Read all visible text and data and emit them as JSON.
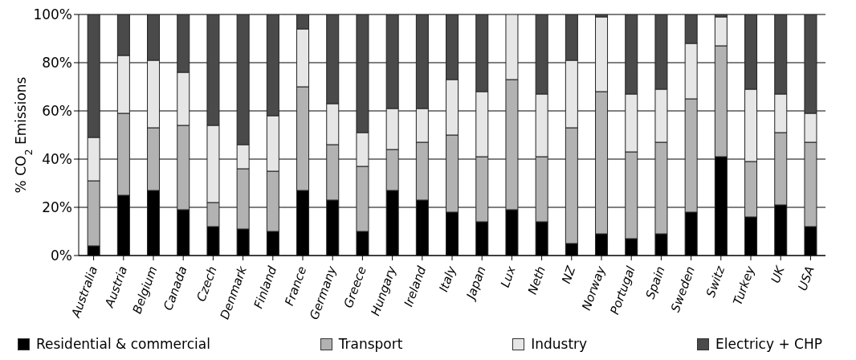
{
  "chart_data": {
    "type": "bar",
    "stacked": true,
    "ylabel": "% CO$_{2}$ Emissions",
    "categories": [
      "Australia",
      "Austria",
      "Belgium",
      "Canada",
      "Czech",
      "Denmark",
      "Finland",
      "France",
      "Germany",
      "Greece",
      "Hungary",
      "Ireland",
      "Italy",
      "Japan",
      "Lux",
      "Neth",
      "NZ",
      "Norway",
      "Portugal",
      "Spain",
      "Sweden",
      "Switz",
      "Turkey",
      "UK",
      "USA"
    ],
    "series": [
      {
        "name": "Residential & commercial",
        "color": "#000000",
        "values": [
          4,
          25,
          27,
          19,
          12,
          11,
          10,
          27,
          23,
          10,
          27,
          23,
          18,
          14,
          19,
          14,
          5,
          9,
          7,
          9,
          18,
          41,
          16,
          21,
          12
        ]
      },
      {
        "name": "Transport",
        "color": "#b2b2b2",
        "values": [
          27,
          34,
          26,
          35,
          10,
          25,
          25,
          43,
          23,
          27,
          17,
          24,
          32,
          27,
          54,
          27,
          48,
          59,
          36,
          38,
          47,
          46,
          23,
          30,
          35
        ]
      },
      {
        "name": "Industry",
        "color": "#e6e6e6",
        "values": [
          18,
          24,
          28,
          22,
          32,
          10,
          23,
          24,
          17,
          14,
          17,
          14,
          23,
          27,
          27,
          26,
          28,
          31,
          24,
          22,
          23,
          12,
          30,
          16,
          12
        ]
      },
      {
        "name": "Electricy + CHP",
        "color": "#4a4a4a",
        "values": [
          51,
          17,
          19,
          24,
          46,
          54,
          42,
          6,
          37,
          49,
          39,
          39,
          27,
          32,
          0,
          33,
          19,
          1,
          33,
          31,
          12,
          1,
          31,
          33,
          41
        ]
      }
    ],
    "ylim": [
      0,
      100
    ],
    "yticks": [
      {
        "value": 0,
        "label": "0%"
      },
      {
        "value": 20,
        "label": "20%"
      },
      {
        "value": 40,
        "label": "40%"
      },
      {
        "value": 60,
        "label": "60%"
      },
      {
        "value": 80,
        "label": "80%"
      },
      {
        "value": 100,
        "label": "100%"
      }
    ],
    "grid": "y",
    "legend": "bottom"
  }
}
